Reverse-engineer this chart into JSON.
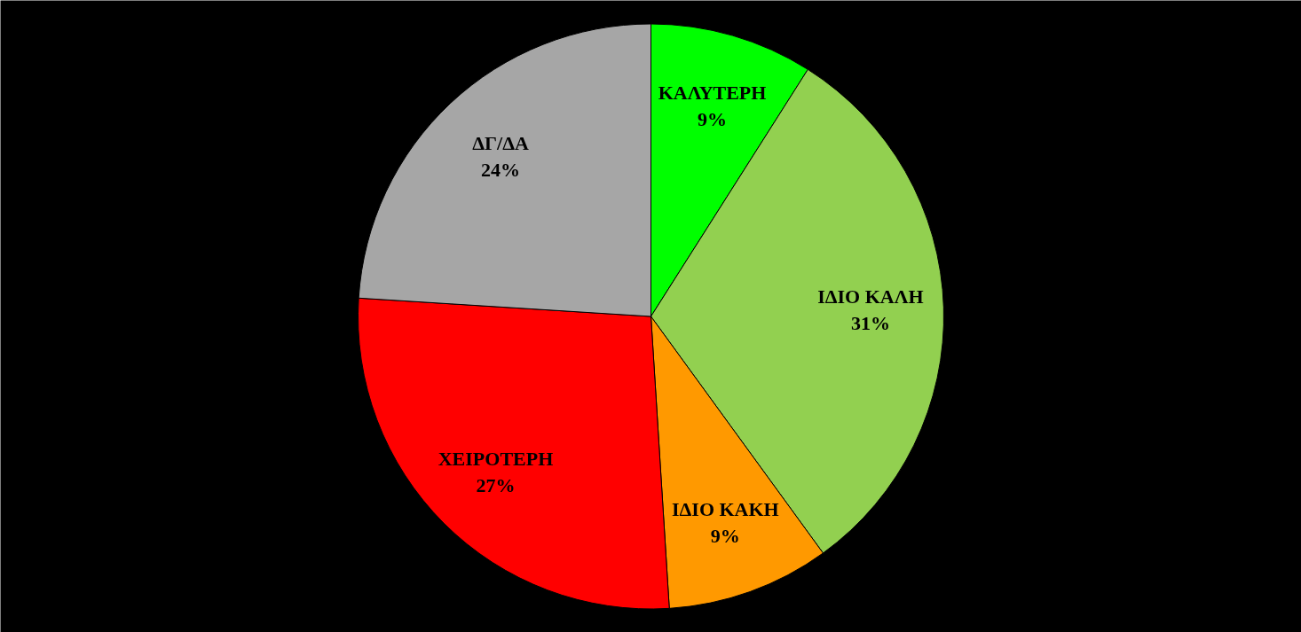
{
  "chart_data": {
    "type": "pie",
    "categories": [
      "ΚΑΛΥΤΕΡΗ",
      "ΙΔΙΟ ΚΑΛΗ",
      "ΙΔΙΟ ΚΑΚΗ",
      "ΧΕΙΡΟΤΕΡΗ",
      "ΔΓ/ΔΑ"
    ],
    "values": [
      9,
      31,
      9,
      27,
      24
    ],
    "value_labels": [
      "9%",
      "31%",
      "9%",
      "27%",
      "24%"
    ],
    "colors": [
      "#00ff00",
      "#92d050",
      "#ff9900",
      "#ff0000",
      "#a6a6a6"
    ]
  }
}
